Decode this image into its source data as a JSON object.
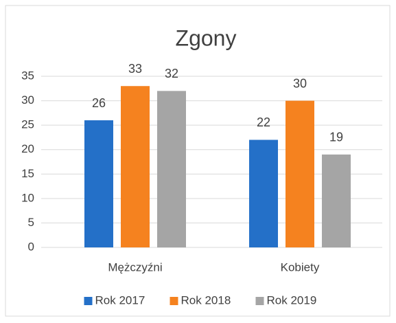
{
  "chart_data": {
    "type": "bar",
    "title": "Zgony",
    "categories": [
      "Mężczyźni",
      "Kobiety"
    ],
    "series": [
      {
        "name": "Rok 2017",
        "color": "#2470c8",
        "values": [
          26,
          22
        ]
      },
      {
        "name": "Rok 2018",
        "color": "#f5821f",
        "values": [
          33,
          30
        ]
      },
      {
        "name": "Rok 2019",
        "color": "#a5a5a5",
        "values": [
          32,
          19
        ]
      }
    ],
    "ylim": [
      0,
      35
    ],
    "yticks": [
      0,
      5,
      10,
      15,
      20,
      25,
      30,
      35
    ],
    "grid": true,
    "legend": "bottom"
  }
}
